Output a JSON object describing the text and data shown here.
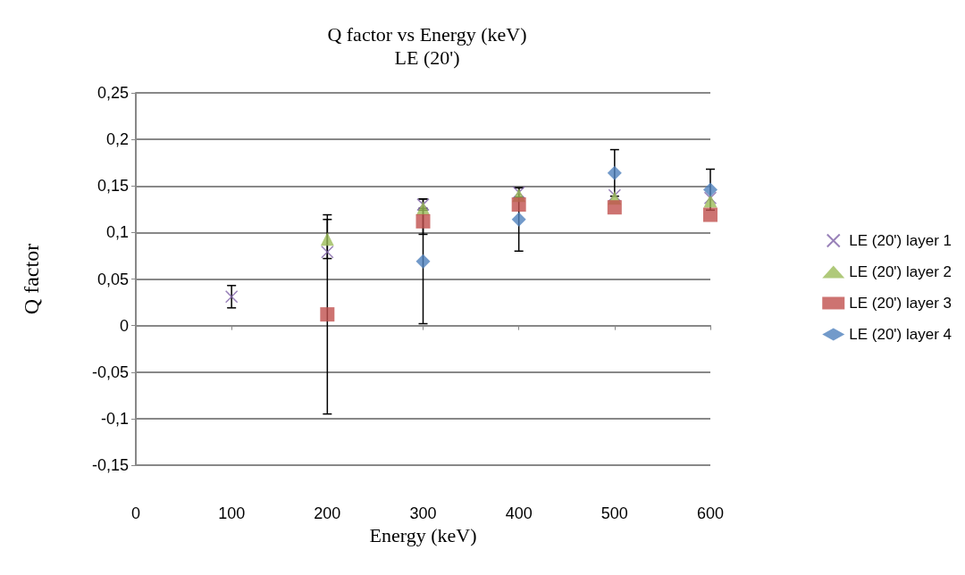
{
  "chart_data": {
    "type": "scatter",
    "title": "Q factor vs Energy (keV)",
    "subtitle": "LE (20')",
    "xlabel": "Energy (keV)",
    "ylabel": "Q factor",
    "xlim": [
      0,
      600
    ],
    "xticks": [
      0,
      100,
      200,
      300,
      400,
      500,
      600
    ],
    "ylim": [
      -0.15,
      0.25
    ],
    "yticks": [
      {
        "value": -0.15,
        "label": "-0,15"
      },
      {
        "value": -0.1,
        "label": "-0,1"
      },
      {
        "value": -0.05,
        "label": "-0,05"
      },
      {
        "value": 0,
        "label": "0"
      },
      {
        "value": 0.05,
        "label": "0,05"
      },
      {
        "value": 0.1,
        "label": "0,1"
      },
      {
        "value": 0.15,
        "label": "0,15"
      },
      {
        "value": 0.2,
        "label": "0,2"
      },
      {
        "value": 0.25,
        "label": "0,25"
      }
    ],
    "grid": "y",
    "legend": "right",
    "series": [
      {
        "name": "LE (20') layer 1",
        "color": "#7f63a8",
        "marker": "cross",
        "x": [
          100,
          200,
          300,
          400,
          500,
          600
        ],
        "values": [
          0.031,
          0.079,
          0.13,
          0.143,
          0.14,
          0.137
        ],
        "errors": [
          0.012,
          null,
          0.006,
          0.005,
          null,
          null
        ]
      },
      {
        "name": "LE (20') layer 2",
        "color": "#9bbb59",
        "marker": "triangle",
        "x": [
          200,
          300,
          400,
          500,
          600
        ],
        "values": [
          0.093,
          0.126,
          0.14,
          0.137,
          0.134
        ],
        "errors": [
          0.021,
          null,
          null,
          null,
          null
        ]
      },
      {
        "name": "LE (20') layer 3",
        "color": "#c0504d",
        "marker": "square",
        "x": [
          200,
          300,
          400,
          500,
          600
        ],
        "values": [
          0.012,
          0.112,
          0.13,
          0.127,
          0.119
        ],
        "errors": [
          0.107,
          0.014,
          null,
          null,
          null
        ]
      },
      {
        "name": "LE (20') layer 4",
        "color": "#4f81bd",
        "marker": "diamond",
        "x": [
          300,
          400,
          500,
          600
        ],
        "values": [
          0.069,
          0.114,
          0.164,
          0.146
        ],
        "errors": [
          0.067,
          0.034,
          0.025,
          0.022
        ]
      }
    ]
  }
}
